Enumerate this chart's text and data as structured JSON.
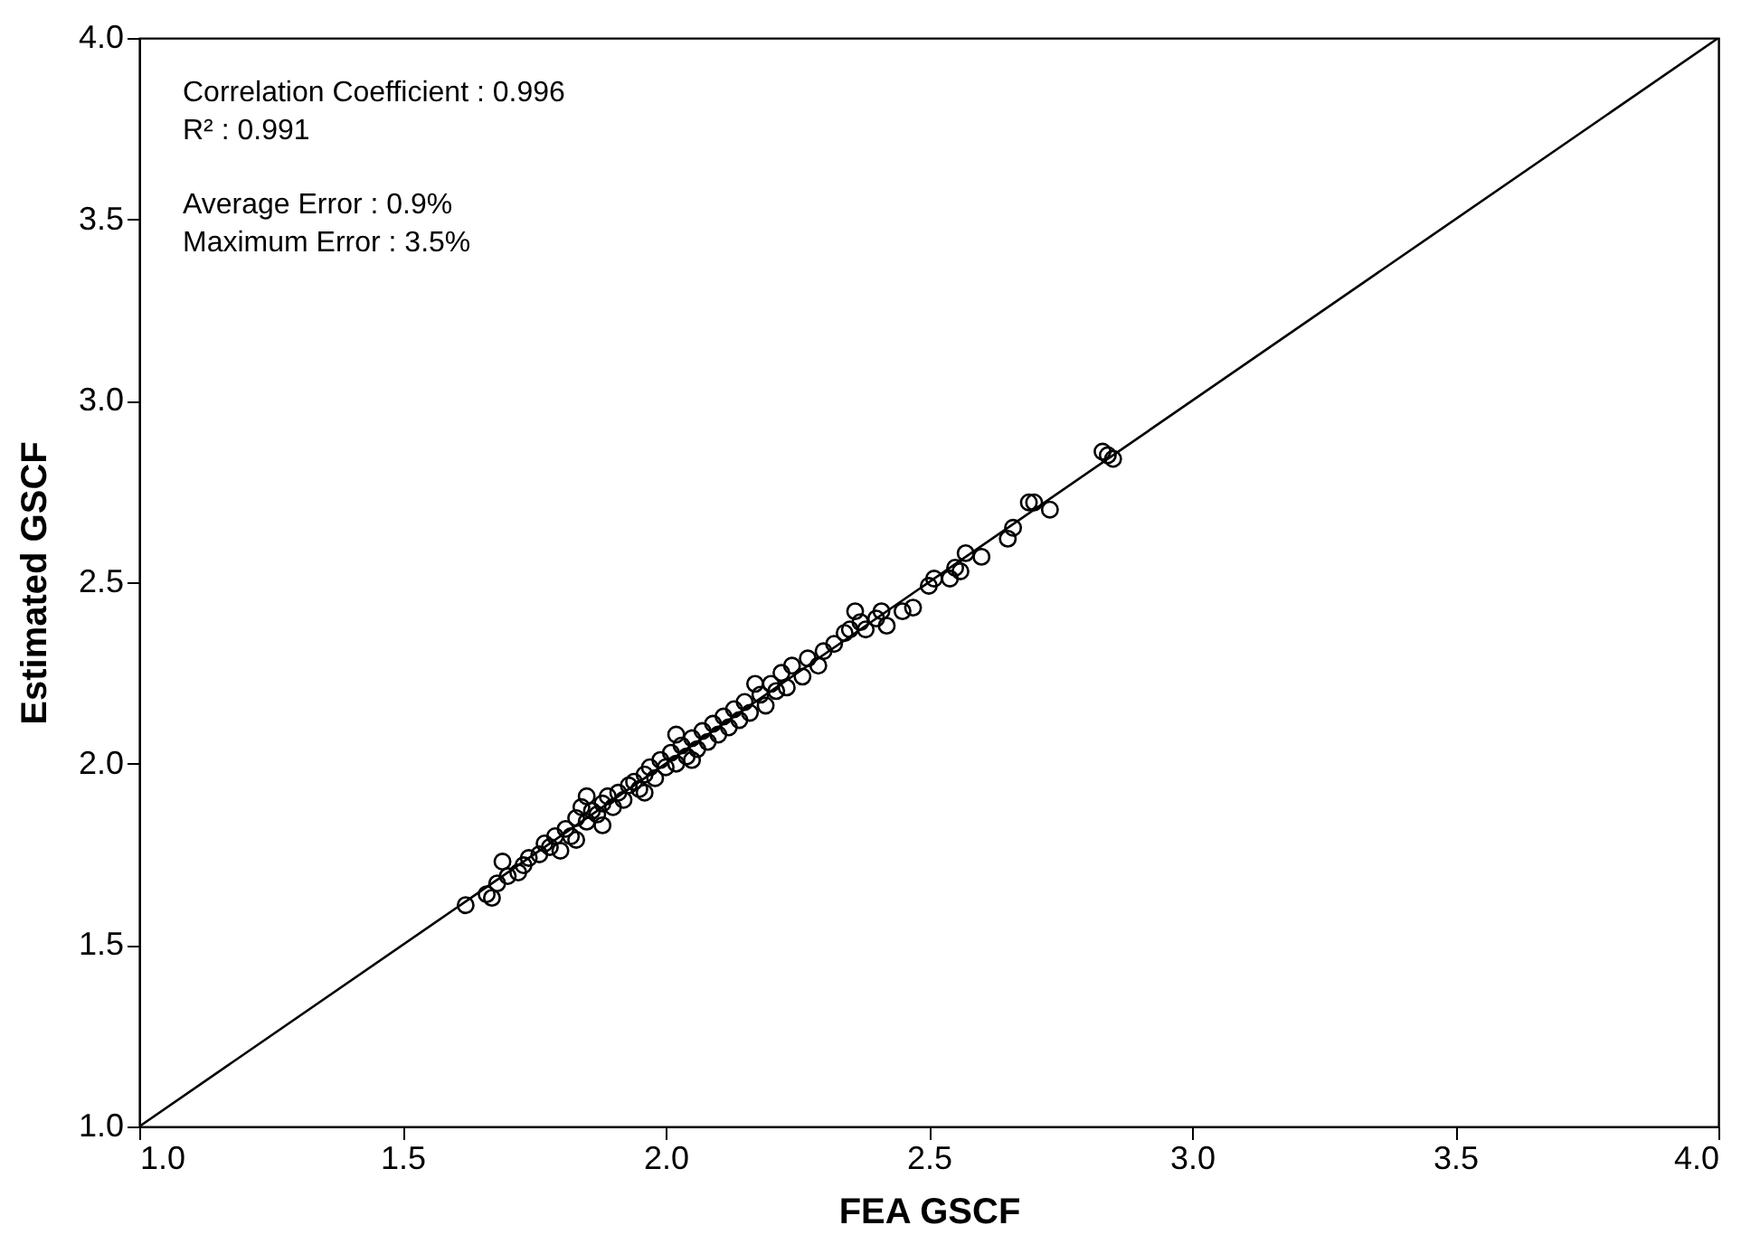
{
  "chart_data": {
    "type": "scatter",
    "xlabel": "FEA GSCF",
    "ylabel": "Estimated GSCF",
    "annotations": [
      "Correlation Coefficient : 0.996",
      "R² : 0.991",
      "Average Error : 0.9%",
      "Maximum Error : 3.5%"
    ],
    "xlim": [
      1.0,
      4.0
    ],
    "ylim": [
      1.0,
      4.0
    ],
    "xticks": [
      {
        "value": 1,
        "label": "1.0"
      },
      1.5,
      {
        "value": 2,
        "label": "2.0"
      },
      2.5,
      {
        "value": 3,
        "label": "3.0"
      },
      3.5,
      {
        "value": 4,
        "label": "4.0"
      }
    ],
    "yticks": [
      {
        "value": 1,
        "label": "1.0"
      },
      1.5,
      {
        "value": 2,
        "label": "2.0"
      },
      2.5,
      {
        "value": 3,
        "label": "3.0"
      },
      3.5,
      {
        "value": 4,
        "label": "4.0"
      }
    ],
    "grid": false,
    "series": [
      {
        "color": "#000000",
        "marker": "circle",
        "x": [
          1.62,
          1.66,
          1.68,
          1.67,
          1.69,
          1.7,
          1.72,
          1.73,
          1.74,
          1.76,
          1.77,
          1.78,
          1.79,
          1.8,
          1.81,
          1.82,
          1.83,
          1.83,
          1.84,
          1.85,
          1.86,
          1.87,
          1.88,
          1.89,
          1.9,
          1.91,
          1.92,
          1.93,
          1.94,
          1.95,
          1.96,
          1.97,
          1.98,
          1.99,
          2.0,
          2.01,
          2.02,
          2.03,
          2.04,
          2.05,
          2.06,
          2.07,
          2.08,
          2.09,
          2.1,
          2.11,
          2.12,
          2.13,
          2.14,
          2.15,
          2.16,
          2.18,
          2.19,
          2.2,
          2.21,
          2.22,
          2.23,
          2.24,
          2.26,
          2.27,
          2.29,
          2.3,
          2.32,
          2.34,
          2.36,
          2.35,
          2.37,
          2.38,
          2.4,
          2.41,
          2.42,
          2.45,
          2.47,
          2.5,
          2.51,
          2.54,
          2.55,
          2.56,
          2.57,
          2.6,
          2.65,
          2.66,
          2.69,
          2.7,
          2.73,
          2.83,
          2.84,
          2.85,
          1.88,
          1.96,
          2.05,
          2.02,
          2.17,
          1.85
        ],
        "values": [
          1.61,
          1.64,
          1.67,
          1.63,
          1.73,
          1.69,
          1.7,
          1.72,
          1.74,
          1.75,
          1.78,
          1.77,
          1.8,
          1.76,
          1.82,
          1.8,
          1.79,
          1.85,
          1.88,
          1.84,
          1.87,
          1.86,
          1.89,
          1.91,
          1.88,
          1.92,
          1.9,
          1.94,
          1.95,
          1.93,
          1.97,
          1.99,
          1.96,
          2.01,
          1.99,
          2.03,
          2.0,
          2.05,
          2.02,
          2.07,
          2.04,
          2.09,
          2.06,
          2.11,
          2.08,
          2.13,
          2.1,
          2.15,
          2.12,
          2.17,
          2.14,
          2.19,
          2.16,
          2.22,
          2.2,
          2.25,
          2.21,
          2.27,
          2.24,
          2.29,
          2.27,
          2.31,
          2.33,
          2.36,
          2.42,
          2.37,
          2.39,
          2.37,
          2.4,
          2.42,
          2.38,
          2.42,
          2.43,
          2.49,
          2.51,
          2.51,
          2.54,
          2.53,
          2.58,
          2.57,
          2.62,
          2.65,
          2.72,
          2.72,
          2.7,
          2.86,
          2.85,
          2.84,
          1.83,
          1.92,
          2.01,
          2.08,
          2.22,
          1.91
        ]
      },
      {
        "type": "line",
        "color": "#000000",
        "line_style": "solid",
        "x": [
          1.0,
          4.0
        ],
        "values": [
          1.0,
          4.0
        ]
      }
    ]
  }
}
